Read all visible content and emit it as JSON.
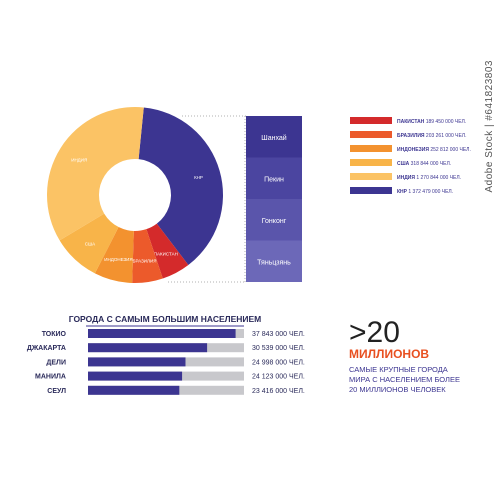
{
  "colors": {
    "navy": "#3c3591",
    "red": "#d42a2b",
    "orange_red": "#ec5a2b",
    "orange": "#f3922f",
    "light_orange": "#f8b449",
    "pale_orange": "#fbc365",
    "stack_1": "#3c3591",
    "stack_2": "#4b45a0",
    "stack_3": "#5a55ab",
    "stack_4": "#6c68b8",
    "bar_track": "#c8c8cc",
    "big_number_text": "#222222",
    "accent_text": "#e85020"
  },
  "watermark": "Adobe Stock | #641823803",
  "chart_data": [
    {
      "type": "pie",
      "variant": "donut",
      "slices": [
        {
          "label": "КНР",
          "value": 1372479000,
          "color_key": "navy"
        },
        {
          "label": "ПАКИСТАН",
          "value": 189450000,
          "color_key": "red"
        },
        {
          "label": "БРАЗИЛИЯ",
          "value": 203261000,
          "color_key": "orange_red"
        },
        {
          "label": "ИНДОНЕЗИЯ",
          "value": 252812000,
          "color_key": "orange"
        },
        {
          "label": "США",
          "value": 318844000,
          "color_key": "light_orange"
        },
        {
          "label": "ИНДИЯ",
          "value": 1270844000,
          "color_key": "pale_orange"
        }
      ],
      "legend": [
        {
          "name": "ПАКИСТАН",
          "value": "189 450 000 ЧЕЛ.",
          "color_key": "red"
        },
        {
          "name": "БРАЗИЛИЯ",
          "value": "203 261 000 ЧЕЛ.",
          "color_key": "orange_red"
        },
        {
          "name": "ИНДОНЕЗИЯ",
          "value": "252 812 000 ЧЕЛ.",
          "color_key": "orange"
        },
        {
          "name": "США",
          "value": "318 844 000 ЧЕЛ.",
          "color_key": "light_orange"
        },
        {
          "name": "ИНДИЯ",
          "value": "1 270 844 000 ЧЕЛ.",
          "color_key": "pale_orange"
        },
        {
          "name": "КНР",
          "value": "1 372 479 000 ЧЕЛ.",
          "color_key": "navy"
        }
      ],
      "legend_position": "right",
      "breakdown": {
        "of": "КНР",
        "items": [
          "Шанхай",
          "Пекин",
          "Гонконг",
          "Тяньцзянь"
        ]
      }
    },
    {
      "type": "bar",
      "orientation": "horizontal",
      "title": "ГОРОДА С САМЫМ БОЛЬШИМ НАСЕЛЕНИЕМ",
      "categories": [
        "ТОКИО",
        "ДЖАКАРТА",
        "ДЕЛИ",
        "МАНИЛА",
        "СЕУЛ"
      ],
      "values": [
        37843000,
        30539000,
        24998000,
        24123000,
        23416000
      ],
      "value_labels": [
        "37 843 000 ЧЕЛ.",
        "30 539 000 ЧЕЛ.",
        "24 998 000 ЧЕЛ.",
        "24 123 000 ЧЕЛ.",
        "23 416 000 ЧЕЛ."
      ],
      "xlim": [
        0,
        40000000
      ]
    }
  ],
  "callout": {
    "big_number": ">20",
    "headline": "МИЛЛИОНОВ",
    "text_lines": [
      "САМЫЕ КРУПНЫЕ ГОРОДА",
      "МИРА С НАСЕЛЕНИЕМ БОЛЕЕ",
      "20 МИЛЛИОНОВ ЧЕЛОВЕК"
    ]
  }
}
